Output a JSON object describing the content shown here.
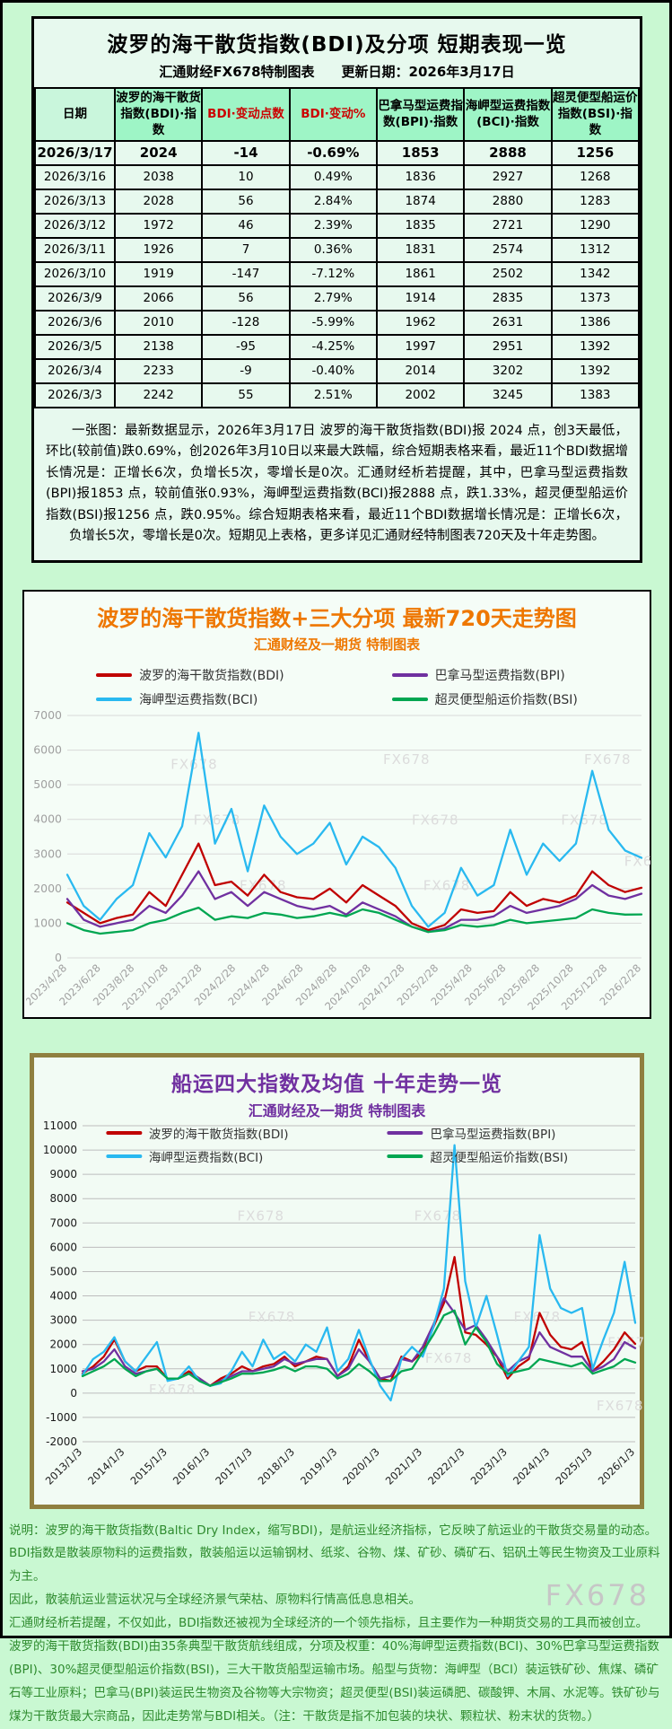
{
  "page": {
    "watermark": "FX678"
  },
  "table_section": {
    "title": "波罗的海干散货指数(BDI)及分项 短期表现一览",
    "subtitle": "汇通财经FX678特制图表　　更新日期：2026年3月17日",
    "headers": [
      "日期",
      "波罗的海干散货\n指数(BDI)·指数",
      "BDI·变动点数",
      "BDI·变动%",
      "巴拿马型运费指\n数(BPI)·指数",
      "海岬型运费指数\n(BCI)·指数",
      "超灵便型船运价\n指数(BSI)·指数"
    ],
    "rows": [
      [
        "2026/3/17",
        "2024",
        "-14",
        "-0.69%",
        "1853",
        "2888",
        "1256"
      ],
      [
        "2026/3/16",
        "2038",
        "10",
        "0.49%",
        "1836",
        "2927",
        "1268"
      ],
      [
        "2026/3/13",
        "2028",
        "56",
        "2.84%",
        "1874",
        "2880",
        "1283"
      ],
      [
        "2026/3/12",
        "1972",
        "46",
        "2.39%",
        "1835",
        "2721",
        "1290"
      ],
      [
        "2026/3/11",
        "1926",
        "7",
        "0.36%",
        "1831",
        "2574",
        "1312"
      ],
      [
        "2026/3/10",
        "1919",
        "-147",
        "-7.12%",
        "1861",
        "2502",
        "1342"
      ],
      [
        "2026/3/9",
        "2066",
        "56",
        "2.79%",
        "1914",
        "2835",
        "1373"
      ],
      [
        "2026/3/6",
        "2010",
        "-128",
        "-5.99%",
        "1962",
        "2631",
        "1386"
      ],
      [
        "2026/3/5",
        "2138",
        "-95",
        "-4.25%",
        "1997",
        "2951",
        "1392"
      ],
      [
        "2026/3/4",
        "2233",
        "-9",
        "-0.40%",
        "2014",
        "3202",
        "1392"
      ],
      [
        "2026/3/3",
        "2242",
        "55",
        "2.51%",
        "2002",
        "3245",
        "1383"
      ]
    ],
    "summary": "一张图：最新数据显示，2026年3月17日 波罗的海干散货指数(BDI)报 2024 点，创3天最低，环比(较前值)跌0.69%，创2026年3月10日以来最大跌幅，综合短期表格来看，最近11个BDI数据增长情况是：正增长6次，负增长5次，零增长是0次。汇通财经析若提醒，其中，巴拿马型运费指数(BPI)报1853 点，较前值张0.93%，海岬型运费指数(BCI)报2888 点，跌1.33%，超灵便型船运价指数(BSI)报1256 点，跌0.95%。综合短期表格来看，最近11个BDI数据增长情况是：正增长6次，负增长5次，零增长是0次。短期见上表格，更多详见汇通财经特制图表720天及十年走势图。"
  },
  "chart_data": [
    {
      "type": "line",
      "title": "波罗的海干散货指数+三大分项  最新720天走势图",
      "subtitle": "汇通财经及一期货 特制图表",
      "ylim": [
        0,
        7000
      ],
      "ytick_step": 1000,
      "grid": true,
      "legend_position": "top",
      "grid_color": "#d9d9d9",
      "axis_color": "#a0a0a0",
      "xlabels": [
        "2023/4/28",
        "2023/6/28",
        "2023/8/28",
        "2023/10/28",
        "2023/12/28",
        "2024/2/28",
        "2024/4/28",
        "2024/6/28",
        "2024/8/28",
        "2024/10/28",
        "2024/12/28",
        "2025/2/28",
        "2025/4/28",
        "2025/6/28",
        "2025/8/28",
        "2025/10/28",
        "2025/12/28",
        "2026/2/28"
      ],
      "series": [
        {
          "name": "波罗的海干散货指数(BDI)",
          "color": "#c00000",
          "values": [
            1600,
            1300,
            1000,
            1150,
            1250,
            1900,
            1500,
            2400,
            3300,
            2100,
            2200,
            1800,
            2400,
            1900,
            1750,
            1700,
            2000,
            1600,
            2100,
            1800,
            1500,
            1000,
            800,
            950,
            1400,
            1300,
            1350,
            1900,
            1500,
            1700,
            1600,
            1800,
            2500,
            2100,
            1900,
            2024
          ]
        },
        {
          "name": "巴拿马型运费指数(BPI)",
          "color": "#7030a0",
          "values": [
            1700,
            1100,
            900,
            1000,
            1100,
            1500,
            1300,
            1800,
            2500,
            1700,
            1900,
            1500,
            1900,
            1700,
            1500,
            1400,
            1500,
            1250,
            1600,
            1400,
            1200,
            900,
            750,
            850,
            1100,
            1100,
            1200,
            1500,
            1300,
            1400,
            1500,
            1700,
            2100,
            1800,
            1700,
            1853
          ]
        },
        {
          "name": "海岬型运费指数(BCI)",
          "color": "#29b9f0",
          "values": [
            2400,
            1500,
            1100,
            1700,
            2100,
            3600,
            2900,
            3800,
            6500,
            3300,
            4300,
            2500,
            4400,
            3500,
            3000,
            3300,
            3900,
            2700,
            3500,
            3200,
            2600,
            1500,
            900,
            1300,
            2600,
            1800,
            2100,
            3700,
            2400,
            3300,
            2800,
            3300,
            5400,
            3700,
            3100,
            2888
          ]
        },
        {
          "name": "超灵便型船运价指数(BSI)",
          "color": "#00a651",
          "values": [
            1000,
            800,
            700,
            750,
            800,
            1000,
            1100,
            1300,
            1450,
            1100,
            1200,
            1150,
            1300,
            1250,
            1150,
            1200,
            1300,
            1200,
            1400,
            1300,
            1100,
            900,
            750,
            800,
            950,
            900,
            950,
            1100,
            1000,
            1050,
            1100,
            1150,
            1400,
            1300,
            1250,
            1256
          ]
        }
      ],
      "wm": [
        [
          0.18,
          0.22
        ],
        [
          0.55,
          0.2
        ],
        [
          0.9,
          0.2
        ],
        [
          0.22,
          0.45
        ],
        [
          0.6,
          0.45
        ],
        [
          0.86,
          0.45
        ],
        [
          0.3,
          0.72
        ],
        [
          0.62,
          0.72
        ],
        [
          0.97,
          0.62
        ]
      ]
    },
    {
      "type": "line",
      "title": "船运四大指数及均值 十年走势一览",
      "subtitle": "汇通财经及一期货 特制图表",
      "ylim": [
        -2000,
        11000
      ],
      "ytick_step": 1000,
      "grid": true,
      "legend_position": "top-inside",
      "grid_color": "#bdbdbd",
      "axis_color": "#1a1a1a",
      "xlabels": [
        "2013/1/3",
        "2014/1/3",
        "2015/1/3",
        "2016/1/3",
        "2017/1/3",
        "2018/1/3",
        "2019/1/3",
        "2020/1/3",
        "2021/1/3",
        "2022/1/3",
        "2023/1/3",
        "2024/1/3",
        "2025/1/3",
        "2026/1/3"
      ],
      "series": [
        {
          "name": "波罗的海干散货指数(BDI)",
          "color": "#c00000",
          "values": [
            800,
            1100,
            1500,
            2200,
            1300,
            900,
            1100,
            1100,
            600,
            600,
            900,
            600,
            300,
            600,
            800,
            1100,
            900,
            1100,
            1200,
            1500,
            1100,
            1300,
            1500,
            1400,
            700,
            1100,
            2200,
            1300,
            600,
            500,
            1500,
            1300,
            1700,
            2700,
            3700,
            5600,
            2500,
            2400,
            2000,
            1500,
            600,
            1100,
            1400,
            3300,
            2400,
            1900,
            1800,
            2100,
            900,
            1300,
            1800,
            2500,
            2024
          ]
        },
        {
          "name": "巴拿马型运费指数(BPI)",
          "color": "#7030a0",
          "values": [
            900,
            1000,
            1300,
            1800,
            1100,
            800,
            900,
            1000,
            600,
            600,
            800,
            600,
            300,
            500,
            700,
            900,
            900,
            1000,
            1100,
            1400,
            1200,
            1300,
            1400,
            1400,
            700,
            1000,
            1800,
            1300,
            600,
            700,
            1400,
            1300,
            1900,
            2800,
            3900,
            3300,
            2600,
            2800,
            2200,
            1500,
            900,
            1300,
            1500,
            2500,
            1900,
            1700,
            1500,
            1500,
            900,
            1100,
            1400,
            2100,
            1853
          ]
        },
        {
          "name": "海岬型运费指数(BCI)",
          "color": "#29b9f0",
          "values": [
            750,
            1400,
            1700,
            2300,
            1300,
            900,
            1500,
            2100,
            500,
            600,
            1100,
            500,
            300,
            400,
            900,
            1700,
            1100,
            2200,
            1400,
            1700,
            1300,
            2000,
            1700,
            2700,
            900,
            1400,
            2600,
            1400,
            300,
            -300,
            1400,
            1900,
            1500,
            2700,
            4300,
            10200,
            4600,
            2700,
            4000,
            2400,
            700,
            1300,
            1900,
            6500,
            4300,
            3500,
            3300,
            3500,
            1000,
            2200,
            3300,
            5400,
            2888
          ]
        },
        {
          "name": "超灵便型船运价指数(BSI)",
          "color": "#00a651",
          "values": [
            700,
            900,
            1100,
            1400,
            1000,
            700,
            900,
            1000,
            600,
            600,
            800,
            500,
            300,
            450,
            600,
            800,
            800,
            850,
            950,
            1100,
            900,
            1100,
            1100,
            1000,
            600,
            800,
            1200,
            900,
            500,
            500,
            900,
            1000,
            1700,
            2400,
            3200,
            3400,
            2000,
            2700,
            2100,
            1200,
            800,
            900,
            1000,
            1400,
            1300,
            1200,
            1100,
            1250,
            800,
            950,
            1100,
            1400,
            1256
          ]
        }
      ],
      "wm": [
        [
          0.28,
          0.3
        ],
        [
          0.6,
          0.3
        ],
        [
          0.3,
          0.62
        ],
        [
          0.62,
          0.75
        ],
        [
          0.78,
          0.62
        ],
        [
          0.95,
          0.7
        ],
        [
          0.12,
          0.85
        ],
        [
          0.93,
          0.9
        ]
      ]
    }
  ],
  "description": {
    "paragraphs": [
      "说明：波罗的海干散货指数(Baltic Dry Index，缩写BDI)，是航运业经济指标，它反映了航运业的干散货交易量的动态。",
      "BDI指数是散装原物料的运费指数，散装船运以运输钢材、纸浆、谷物、煤、矿砂、磷矿石、铝矾土等民生物资及工业原料为主。",
      "因此，散装航运业营运状况与全球经济景气荣枯、原物料行情高低息息相关。",
      "汇通财经析若提醒，不仅如此，BDI指数还被视为全球经济的一个领先指标，且主要作为一种期货交易的工具而被创立。",
      "波罗的海干散货指数(BDI)由35条典型干散货航线组成，分项及权重：40%海岬型运费指数(BCI)、30%巴拿马型运费指数(BPI)、30%超灵便型船运价指数(BSI)，三大干散货船型运输市场。船型与货物：海岬型（BCI）装运铁矿砂、焦煤、磷矿石等工业原料；巴拿马(BPI)装运民生物资及谷物等大宗物资；超灵便型(BSI)装运磷肥、碳酸钾、木屑、水泥等。铁矿砂与煤为干散货最大宗商品，因此走势常与BDI相关。（注：干散货是指不加包装的块状、颗粒状、粉末状的货物。）"
    ]
  }
}
